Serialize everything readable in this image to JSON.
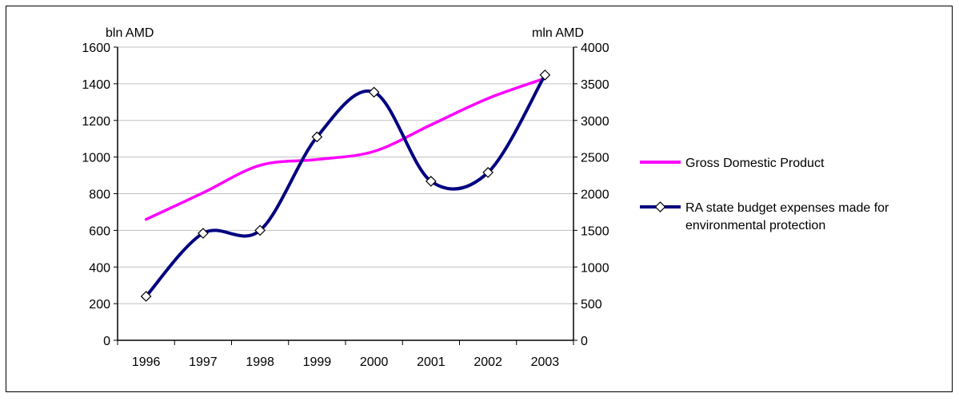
{
  "chart_data": {
    "type": "line",
    "categories": [
      "1996",
      "1997",
      "1998",
      "1999",
      "2000",
      "2001",
      "2002",
      "2003"
    ],
    "y_left_label": "bln AMD",
    "y_right_label": "mln AMD",
    "y_left_ticks": [
      "0",
      "200",
      "400",
      "600",
      "800",
      "1000",
      "1200",
      "1400",
      "1600"
    ],
    "y_right_ticks": [
      "0",
      "500",
      "1000",
      "1500",
      "2000",
      "2500",
      "3000",
      "3500",
      "4000"
    ],
    "y_left_range": [
      0,
      1600
    ],
    "y_right_range": [
      0,
      4000
    ],
    "grid": "horizontal",
    "legend_position": "right",
    "series": [
      {
        "name": "Gross Domestic Product",
        "axis": "left",
        "color": "#ff00ff",
        "marker": "none",
        "values": [
          660,
          805,
          955,
          987,
          1031,
          1176,
          1320,
          1430
        ]
      },
      {
        "name": "RA state budget expenses made for environmental protection",
        "name_lines": [
          "RA state budget expenses made for",
          "environmental protection"
        ],
        "axis": "right",
        "color": "#000080",
        "marker": "diamond",
        "values": [
          600,
          1460,
          1500,
          2775,
          3385,
          2170,
          2290,
          3620
        ]
      }
    ]
  }
}
